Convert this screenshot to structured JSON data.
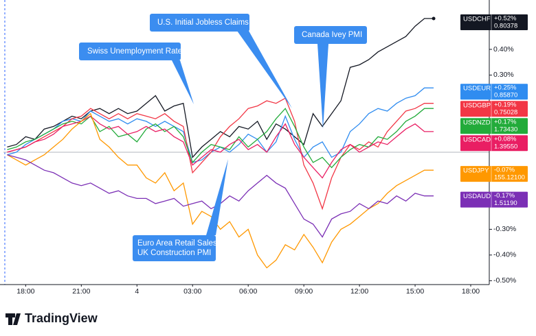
{
  "chart_data": {
    "type": "line",
    "x": [
      -1,
      -0.5,
      0,
      0.5,
      1,
      1.5,
      2,
      2.5,
      3,
      3.5,
      4,
      4.5,
      5,
      5.5,
      6,
      6.5,
      7,
      7.5,
      8,
      8.5,
      9,
      9.5,
      10,
      10.5,
      11,
      11.5,
      12,
      12.5,
      13,
      13.5,
      14,
      14.5,
      15,
      15.5,
      16,
      16.5,
      17,
      17.5,
      18,
      18.5,
      19,
      19.5,
      20,
      20.5,
      21,
      21.5,
      22
    ],
    "xlim": [
      -1.2,
      25
    ],
    "xticks": [
      {
        "value": 0,
        "label": "18:00"
      },
      {
        "value": 3,
        "label": "21:00"
      },
      {
        "value": 6,
        "label": "4"
      },
      {
        "value": 9,
        "label": "03:00"
      },
      {
        "value": 12,
        "label": "06:00"
      },
      {
        "value": 15,
        "label": "09:00"
      },
      {
        "value": 18,
        "label": "12:00"
      },
      {
        "value": 21,
        "label": "15:00"
      },
      {
        "value": 24,
        "label": "18:00"
      }
    ],
    "ylim": [
      -0.515,
      0.592
    ],
    "yticks": [
      {
        "value": 0.4,
        "label": "0.40%"
      },
      {
        "value": 0.3,
        "label": "0.30%"
      },
      {
        "value": -0.3,
        "label": "-0.30%"
      },
      {
        "value": -0.4,
        "label": "-0.40%"
      },
      {
        "value": -0.5,
        "label": "-0.50%"
      }
    ],
    "series": [
      {
        "name": "USDCHF",
        "color": "#131722",
        "change": "+0.52%",
        "price": "0.80378",
        "values": [
          0.02,
          0.03,
          0.06,
          0.05,
          0.09,
          0.1,
          0.12,
          0.14,
          0.13,
          0.16,
          0.17,
          0.15,
          0.17,
          0.15,
          0.16,
          0.19,
          0.22,
          0.16,
          0.18,
          0.19,
          -0.02,
          0.02,
          0.05,
          0.08,
          0.06,
          0.1,
          0.09,
          0.12,
          0.05,
          0.11,
          0.09,
          0.06,
          0.03,
          0.15,
          0.1,
          0.15,
          0.2,
          0.33,
          0.34,
          0.36,
          0.39,
          0.41,
          0.43,
          0.45,
          0.49,
          0.52,
          0.52
        ]
      },
      {
        "name": "USDEUR",
        "color": "#2f8cf0",
        "change": "+0.25%",
        "price": "0.85870",
        "values": [
          -0.01,
          0.0,
          0.03,
          0.05,
          0.07,
          0.09,
          0.12,
          0.13,
          0.12,
          0.16,
          0.14,
          0.12,
          0.13,
          0.11,
          0.13,
          0.12,
          0.1,
          0.12,
          0.1,
          0.08,
          -0.04,
          -0.03,
          0.0,
          0.02,
          0.0,
          0.03,
          0.07,
          0.05,
          0.0,
          0.04,
          0.14,
          0.05,
          -0.02,
          0.02,
          0.04,
          -0.02,
          0.0,
          0.08,
          0.11,
          0.15,
          0.17,
          0.16,
          0.19,
          0.21,
          0.22,
          0.25,
          0.25
        ]
      },
      {
        "name": "USDGBP",
        "color": "#f23645",
        "change": "+0.19%",
        "price": "0.75028",
        "values": [
          0.0,
          0.01,
          0.02,
          0.04,
          0.06,
          0.08,
          0.1,
          0.13,
          0.14,
          0.17,
          0.15,
          0.13,
          0.15,
          0.13,
          0.15,
          0.14,
          0.13,
          0.15,
          0.12,
          0.1,
          -0.08,
          -0.04,
          0.0,
          0.06,
          0.1,
          0.13,
          0.17,
          0.18,
          0.2,
          0.19,
          0.21,
          0.12,
          -0.05,
          -0.12,
          -0.22,
          -0.1,
          -0.02,
          0.03,
          0.01,
          0.04,
          0.02,
          0.08,
          0.12,
          0.16,
          0.17,
          0.19,
          0.19
        ]
      },
      {
        "name": "USDNZD",
        "color": "#22ab3a",
        "change": "+0.17%",
        "price": "1.73430",
        "values": [
          0.01,
          0.02,
          0.04,
          0.05,
          0.07,
          0.09,
          0.11,
          0.12,
          0.11,
          0.14,
          0.08,
          0.1,
          0.06,
          0.07,
          0.04,
          0.09,
          0.11,
          0.08,
          0.1,
          0.06,
          -0.04,
          0.0,
          0.03,
          0.02,
          0.01,
          0.06,
          0.02,
          0.05,
          0.08,
          0.13,
          0.17,
          0.1,
          0.02,
          -0.04,
          -0.02,
          -0.06,
          -0.02,
          0.01,
          0.03,
          0.02,
          0.06,
          0.05,
          0.08,
          0.12,
          0.14,
          0.17,
          0.17
        ]
      },
      {
        "name": "USDCAD",
        "color": "#e91e63",
        "change": "+0.08%",
        "price": "1.39550",
        "values": [
          0.0,
          0.01,
          0.02,
          0.04,
          0.05,
          0.07,
          0.1,
          0.11,
          0.12,
          0.14,
          0.11,
          0.09,
          0.1,
          0.07,
          0.08,
          0.1,
          0.08,
          0.09,
          0.06,
          0.04,
          -0.05,
          -0.02,
          0.01,
          0.0,
          0.03,
          0.05,
          0.01,
          0.03,
          0.0,
          0.06,
          0.11,
          0.03,
          -0.02,
          -0.06,
          -0.1,
          -0.04,
          0.01,
          0.03,
          0.0,
          0.02,
          0.04,
          0.03,
          0.06,
          0.09,
          0.11,
          0.08,
          0.08
        ]
      },
      {
        "name": "USDJPY",
        "color": "#ff9800",
        "change": "-0.07%",
        "price": "155.12100",
        "values": [
          -0.01,
          -0.03,
          -0.05,
          -0.03,
          -0.01,
          0.02,
          0.05,
          0.09,
          0.12,
          0.15,
          0.05,
          0.02,
          -0.02,
          -0.05,
          -0.05,
          -0.1,
          -0.12,
          -0.08,
          -0.15,
          -0.12,
          -0.28,
          -0.23,
          -0.25,
          -0.3,
          -0.27,
          -0.33,
          -0.3,
          -0.4,
          -0.45,
          -0.42,
          -0.36,
          -0.38,
          -0.32,
          -0.37,
          -0.43,
          -0.35,
          -0.3,
          -0.28,
          -0.25,
          -0.22,
          -0.2,
          -0.16,
          -0.13,
          -0.11,
          -0.09,
          -0.07,
          -0.07
        ]
      },
      {
        "name": "USDAUD",
        "color": "#7b2fb5",
        "change": "-0.17%",
        "price": "1.51190",
        "values": [
          -0.01,
          -0.02,
          -0.03,
          -0.05,
          -0.07,
          -0.08,
          -0.1,
          -0.12,
          -0.13,
          -0.12,
          -0.14,
          -0.16,
          -0.15,
          -0.17,
          -0.18,
          -0.18,
          -0.2,
          -0.19,
          -0.18,
          -0.21,
          -0.2,
          -0.19,
          -0.22,
          -0.2,
          -0.17,
          -0.19,
          -0.15,
          -0.12,
          -0.09,
          -0.12,
          -0.14,
          -0.2,
          -0.26,
          -0.28,
          -0.33,
          -0.26,
          -0.24,
          -0.23,
          -0.2,
          -0.22,
          -0.19,
          -0.2,
          -0.17,
          -0.19,
          -0.16,
          -0.17,
          -0.17
        ]
      }
    ],
    "annotations": [
      {
        "lines": [
          "Swiss Unemployment Rate"
        ]
      },
      {
        "lines": [
          "U.S. Initial Jobless Claims"
        ]
      },
      {
        "lines": [
          "Canada Ivey PMI"
        ]
      },
      {
        "lines": [
          "Euro Area Retail Sales",
          "UK Construction PMI"
        ]
      }
    ]
  },
  "footer": {
    "brand": "TradingView"
  }
}
